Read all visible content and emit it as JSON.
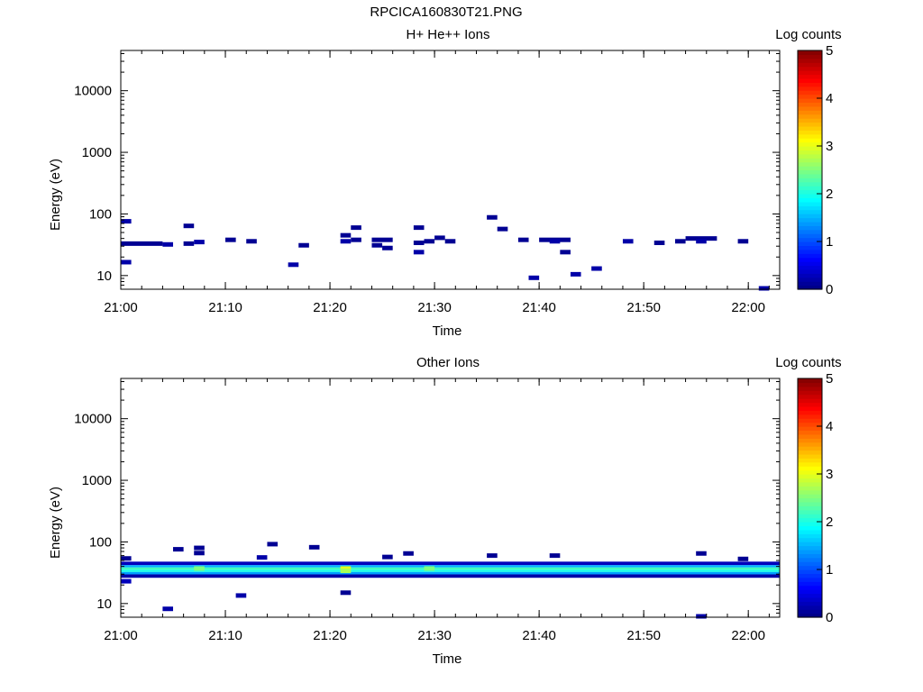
{
  "figure_title": "RPCICA160830T21.PNG",
  "colors": {
    "background": "#ffffff",
    "axis": "#000000",
    "colormap": [
      "#00007f",
      "#0000ff",
      "#007fff",
      "#00ffff",
      "#7fff7f",
      "#ffff00",
      "#ff7f00",
      "#ff0000",
      "#7f0000"
    ]
  },
  "chart_data": [
    {
      "type": "heatmap",
      "title": "H+ He++ Ions",
      "xlabel": "Time",
      "ylabel": "Energy (eV)",
      "yscale": "log",
      "ylim": [
        6,
        45000
      ],
      "xlim": [
        "21:00",
        "22:03"
      ],
      "x_ticks": [
        "21:00",
        "21:10",
        "21:20",
        "21:30",
        "21:40",
        "21:50",
        "22:00"
      ],
      "y_ticks": [
        10,
        100,
        1000,
        10000
      ],
      "y_tick_labels": [
        "10",
        "100",
        "1000",
        "10000"
      ],
      "colorbar": {
        "label": "Log counts",
        "range": [
          0,
          5
        ],
        "ticks": [
          "0",
          "1",
          "2",
          "3",
          "4",
          "5"
        ]
      },
      "cells": [
        {
          "t": [
            "21:00",
            "21:04"
          ],
          "e": 33,
          "v": 0.1
        },
        {
          "t": [
            "21:00",
            "21:01"
          ],
          "e": 76,
          "v": 0.2
        },
        {
          "t": [
            "21:00",
            "21:01"
          ],
          "e": 16.5,
          "v": 0.2
        },
        {
          "t": [
            "21:04",
            "21:05"
          ],
          "e": 32,
          "v": 0.2
        },
        {
          "t": [
            "21:06",
            "21:07"
          ],
          "e": 64,
          "v": 0.1
        },
        {
          "t": [
            "21:06",
            "21:07"
          ],
          "e": 33,
          "v": 0.1
        },
        {
          "t": [
            "21:07",
            "21:08"
          ],
          "e": 35,
          "v": 0.2
        },
        {
          "t": [
            "21:10",
            "21:11"
          ],
          "e": 38,
          "v": 0.1
        },
        {
          "t": [
            "21:12",
            "21:13"
          ],
          "e": 36,
          "v": 0.1
        },
        {
          "t": [
            "21:16",
            "21:17"
          ],
          "e": 15,
          "v": 0.2
        },
        {
          "t": [
            "21:17",
            "21:18"
          ],
          "e": 31,
          "v": 0.1
        },
        {
          "t": [
            "21:21",
            "21:22"
          ],
          "e": 45,
          "v": 0.1
        },
        {
          "t": [
            "21:21",
            "21:22"
          ],
          "e": 36,
          "v": 0.2
        },
        {
          "t": [
            "21:22",
            "21:23"
          ],
          "e": 60,
          "v": 0.1
        },
        {
          "t": [
            "21:22",
            "21:23"
          ],
          "e": 38,
          "v": 0.1
        },
        {
          "t": [
            "21:24",
            "21:26"
          ],
          "e": 38,
          "v": 0.1
        },
        {
          "t": [
            "21:24",
            "21:25"
          ],
          "e": 31,
          "v": 0.1
        },
        {
          "t": [
            "21:25",
            "21:26"
          ],
          "e": 28,
          "v": 0.1
        },
        {
          "t": [
            "21:28",
            "21:29"
          ],
          "e": 60,
          "v": 0.1
        },
        {
          "t": [
            "21:28",
            "21:29"
          ],
          "e": 34,
          "v": 0.1
        },
        {
          "t": [
            "21:28",
            "21:29"
          ],
          "e": 24,
          "v": 0.2
        },
        {
          "t": [
            "21:29",
            "21:30"
          ],
          "e": 36,
          "v": 0.1
        },
        {
          "t": [
            "21:30",
            "21:31"
          ],
          "e": 41,
          "v": 0.1
        },
        {
          "t": [
            "21:31",
            "21:32"
          ],
          "e": 36,
          "v": 0.1
        },
        {
          "t": [
            "21:35",
            "21:36"
          ],
          "e": 88,
          "v": 0.1
        },
        {
          "t": [
            "21:36",
            "21:37"
          ],
          "e": 57,
          "v": 0.1
        },
        {
          "t": [
            "21:38",
            "21:39"
          ],
          "e": 38,
          "v": 0.1
        },
        {
          "t": [
            "21:39",
            "21:40"
          ],
          "e": 9.2,
          "v": 0.2
        },
        {
          "t": [
            "21:40",
            "21:43"
          ],
          "e": 38,
          "v": 0.1
        },
        {
          "t": [
            "21:41",
            "21:42"
          ],
          "e": 36,
          "v": 0.2
        },
        {
          "t": [
            "21:42",
            "21:43"
          ],
          "e": 24,
          "v": 0.1
        },
        {
          "t": [
            "21:43",
            "21:44"
          ],
          "e": 10.5,
          "v": 0.2
        },
        {
          "t": [
            "21:45",
            "21:46"
          ],
          "e": 13,
          "v": 0.2
        },
        {
          "t": [
            "21:48",
            "21:49"
          ],
          "e": 36,
          "v": 0.2
        },
        {
          "t": [
            "21:51",
            "21:52"
          ],
          "e": 34,
          "v": 0.1
        },
        {
          "t": [
            "21:53",
            "21:54"
          ],
          "e": 36,
          "v": 0.1
        },
        {
          "t": [
            "21:54",
            "21:57"
          ],
          "e": 40,
          "v": 0.1
        },
        {
          "t": [
            "21:55",
            "21:56"
          ],
          "e": 36,
          "v": 0.2
        },
        {
          "t": [
            "21:59",
            "22:00"
          ],
          "e": 36,
          "v": 0.1
        },
        {
          "t": [
            "22:01",
            "22:02"
          ],
          "e": 6.2,
          "v": 0.2
        }
      ]
    },
    {
      "type": "heatmap",
      "title": "Other Ions",
      "xlabel": "Time",
      "ylabel": "Energy (eV)",
      "yscale": "log",
      "ylim": [
        6,
        45000
      ],
      "xlim": [
        "21:00",
        "22:03"
      ],
      "x_ticks": [
        "21:00",
        "21:10",
        "21:20",
        "21:30",
        "21:40",
        "21:50",
        "22:00"
      ],
      "y_ticks": [
        10,
        100,
        1000,
        10000
      ],
      "y_tick_labels": [
        "10",
        "100",
        "1000",
        "10000"
      ],
      "colorbar": {
        "label": "Log counts",
        "range": [
          0,
          5
        ],
        "ticks": [
          "0",
          "1",
          "2",
          "3",
          "4",
          "5"
        ]
      },
      "band": {
        "t": [
          "21:00",
          "22:03"
        ],
        "rows": [
          {
            "e": 44,
            "v": 0.3
          },
          {
            "e": 40,
            "v": 1.5
          },
          {
            "e": 37,
            "v": 2.2
          },
          {
            "e": 34,
            "v": 2.0
          },
          {
            "e": 31,
            "v": 1.4
          },
          {
            "e": 28.5,
            "v": 0.2
          }
        ],
        "hotspots": [
          {
            "t": [
              "21:21",
              "21:22"
            ],
            "e": 37,
            "v": 3.0
          },
          {
            "t": [
              "21:21",
              "21:22"
            ],
            "e": 34,
            "v": 2.7
          },
          {
            "t": [
              "21:07",
              "21:08"
            ],
            "e": 37,
            "v": 2.5
          },
          {
            "t": [
              "21:29",
              "21:30"
            ],
            "e": 37,
            "v": 2.5
          }
        ]
      },
      "cells": [
        {
          "t": [
            "21:00",
            "21:01"
          ],
          "e": 54,
          "v": 0.1
        },
        {
          "t": [
            "21:00",
            "21:01"
          ],
          "e": 23,
          "v": 0.3
        },
        {
          "t": [
            "21:04",
            "21:05"
          ],
          "e": 8.2,
          "v": 0.2
        },
        {
          "t": [
            "21:05",
            "21:06"
          ],
          "e": 76,
          "v": 0.1
        },
        {
          "t": [
            "21:07",
            "21:08"
          ],
          "e": 80,
          "v": 0.1
        },
        {
          "t": [
            "21:07",
            "21:08"
          ],
          "e": 66,
          "v": 0.1
        },
        {
          "t": [
            "21:11",
            "21:12"
          ],
          "e": 13.5,
          "v": 0.2
        },
        {
          "t": [
            "21:13",
            "21:14"
          ],
          "e": 56,
          "v": 0.2
        },
        {
          "t": [
            "21:14",
            "21:15"
          ],
          "e": 92,
          "v": 0.1
        },
        {
          "t": [
            "21:18",
            "21:19"
          ],
          "e": 82,
          "v": 0.1
        },
        {
          "t": [
            "21:21",
            "21:22"
          ],
          "e": 15,
          "v": 0.1
        },
        {
          "t": [
            "21:25",
            "21:26"
          ],
          "e": 57,
          "v": 0.1
        },
        {
          "t": [
            "21:27",
            "21:28"
          ],
          "e": 65,
          "v": 0.1
        },
        {
          "t": [
            "21:35",
            "21:36"
          ],
          "e": 60,
          "v": 0.1
        },
        {
          "t": [
            "21:41",
            "21:42"
          ],
          "e": 60,
          "v": 0.1
        },
        {
          "t": [
            "21:55",
            "21:56"
          ],
          "e": 65,
          "v": 0.1
        },
        {
          "t": [
            "21:55",
            "21:56"
          ],
          "e": 6.2,
          "v": 0.2
        },
        {
          "t": [
            "21:59",
            "22:00"
          ],
          "e": 53,
          "v": 0.1
        }
      ]
    }
  ]
}
